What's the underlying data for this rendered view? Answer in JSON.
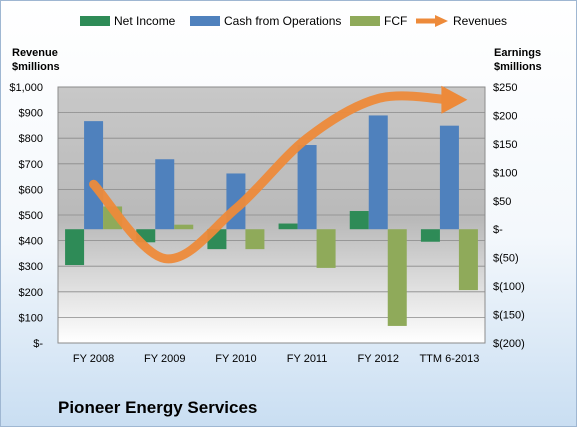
{
  "chart_data": {
    "type": "bar",
    "title": "Pioneer Energy Services",
    "categories": [
      "FY 2008",
      "FY 2009",
      "FY 2010",
      "FY 2011",
      "FY 2012",
      "TTM 6-2013"
    ],
    "left_axis": {
      "label_line1": "Revenue",
      "label_line2": "$millions",
      "range": [
        0,
        1000
      ],
      "ticks": [
        "$-",
        "$100",
        "$200",
        "$300",
        "$400",
        "$500",
        "$600",
        "$700",
        "$800",
        "$900",
        "$1,000"
      ]
    },
    "right_axis": {
      "label_line1": "Earnings",
      "label_line2": "$millions",
      "range": [
        -200,
        250
      ],
      "ticks": [
        "$(200)",
        "$(150)",
        "$(100)",
        "$(50)",
        "$-",
        "$50",
        "$100",
        "$150",
        "$200",
        "$250"
      ]
    },
    "series": [
      {
        "name": "Net Income",
        "axis": "right",
        "type": "bar",
        "color": "#2e8b57",
        "values": [
          -63,
          -23,
          -35,
          10,
          32,
          -22
        ]
      },
      {
        "name": "Cash from Operations",
        "axis": "right",
        "type": "bar",
        "color": "#4f81bd",
        "values": [
          190,
          123,
          98,
          148,
          200,
          182
        ]
      },
      {
        "name": "FCF",
        "axis": "right",
        "type": "bar",
        "color": "#8faa5a",
        "values": [
          40,
          8,
          -35,
          -68,
          -170,
          -107
        ]
      },
      {
        "name": "Revenues",
        "axis": "left",
        "type": "line",
        "color": "#ed8a3a",
        "values": [
          620,
          330,
          525,
          800,
          955,
          950
        ]
      }
    ],
    "legend_position": "top",
    "grid": true
  }
}
